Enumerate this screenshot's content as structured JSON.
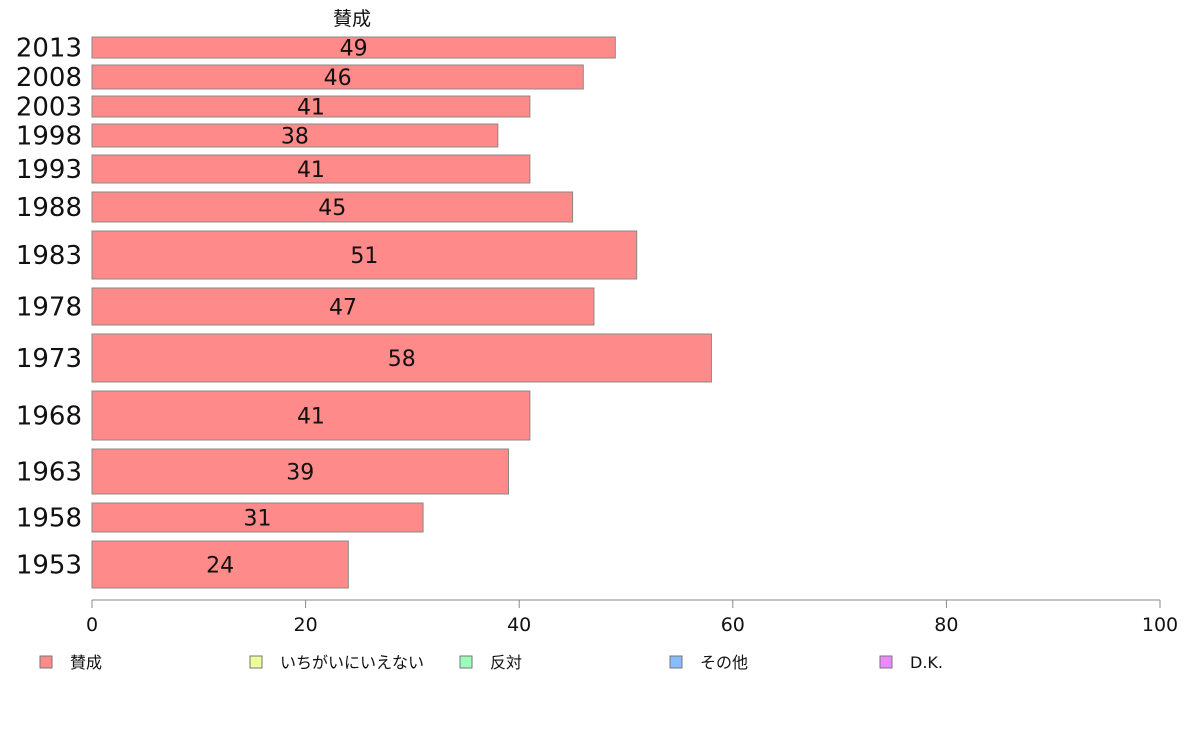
{
  "chart_data": {
    "type": "bar",
    "orientation": "horizontal",
    "series_title": "賛成",
    "categories": [
      "2013",
      "2008",
      "2003",
      "1998",
      "1993",
      "1988",
      "1983",
      "1978",
      "1973",
      "1968",
      "1963",
      "1958",
      "1953"
    ],
    "series": [
      {
        "name": "賛成",
        "color": "#ff8a8a",
        "values": [
          49,
          46,
          41,
          38,
          41,
          45,
          51,
          47,
          58,
          41,
          39,
          31,
          24
        ]
      }
    ],
    "value_labels": [
      "49",
      "46",
      "41",
      "38",
      "41",
      "45",
      "51",
      "47",
      "58",
      "41",
      "39",
      "31",
      "24"
    ],
    "xlim": [
      0,
      100
    ],
    "xticks": [
      0,
      20,
      40,
      60,
      80,
      100
    ],
    "grid": false,
    "legend": {
      "position": "bottom",
      "items": [
        {
          "label": "賛成",
          "color": "#ff8a8a"
        },
        {
          "label": "いちがいにいえない",
          "color": "#eeff99"
        },
        {
          "label": "反対",
          "color": "#99ffbb"
        },
        {
          "label": "その他",
          "color": "#88bbff"
        },
        {
          "label": "D.K.",
          "color": "#ee88ff"
        }
      ]
    }
  }
}
